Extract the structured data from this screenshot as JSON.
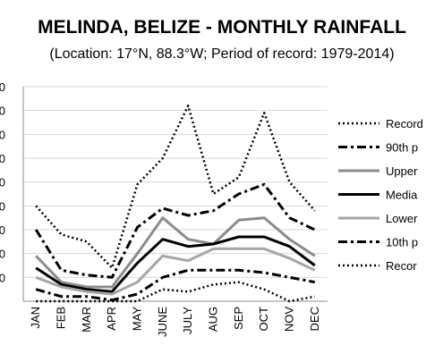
{
  "chart_data": {
    "type": "line",
    "title": "MELINDA, BELIZE - MONTHLY RAINFALL",
    "subtitle": "(Location: 17°N, 88.3°W; Period of record: 1979-2014)",
    "categories": [
      "JAN",
      "FEB",
      "MAR",
      "APR",
      "MAY",
      "JUNE",
      "JULY",
      "AUG",
      "SEP",
      "OCT",
      "NOV",
      "DEC"
    ],
    "y_tick_labels": [
      "",
      "0",
      "0",
      "0",
      "0",
      "0",
      "0",
      "0",
      "0",
      "0"
    ],
    "ylim": [
      0,
      9
    ],
    "grid": "horizontal",
    "legend_position": "right",
    "series": [
      {
        "name": "Record",
        "style": "dotted",
        "color": "#000000",
        "values": [
          4.0,
          2.8,
          2.5,
          1.4,
          4.9,
          6.0,
          8.2,
          4.5,
          5.2,
          7.9,
          5.0,
          3.8
        ]
      },
      {
        "name": "90th p",
        "style": "dashdot",
        "color": "#000000",
        "values": [
          3.0,
          1.3,
          1.1,
          1.0,
          3.1,
          3.9,
          3.6,
          3.8,
          4.5,
          4.9,
          3.5,
          3.0
        ]
      },
      {
        "name": "Upper",
        "style": "solid",
        "color": "#8c8c8c",
        "values": [
          1.9,
          0.8,
          0.6,
          0.6,
          2.0,
          3.5,
          2.6,
          2.4,
          3.4,
          3.5,
          2.6,
          1.9
        ]
      },
      {
        "name": "Media",
        "style": "solid",
        "color": "#000000",
        "values": [
          1.4,
          0.7,
          0.5,
          0.4,
          1.6,
          2.6,
          2.3,
          2.4,
          2.7,
          2.7,
          2.3,
          1.5
        ]
      },
      {
        "name": "Lower",
        "style": "solid",
        "color": "#a6a6a6",
        "values": [
          1.0,
          0.6,
          0.4,
          0.3,
          0.8,
          1.9,
          1.7,
          2.2,
          2.2,
          2.2,
          1.8,
          1.3
        ]
      },
      {
        "name": "10th p",
        "style": "dashdot",
        "color": "#000000",
        "values": [
          0.5,
          0.2,
          0.2,
          0.05,
          0.3,
          1.0,
          1.3,
          1.3,
          1.3,
          1.2,
          1.0,
          0.8
        ]
      },
      {
        "name": "Recor",
        "style": "dotted",
        "color": "#000000",
        "values": [
          0.0,
          0.0,
          0.0,
          0.0,
          0.0,
          0.5,
          0.4,
          0.7,
          0.8,
          0.5,
          0.0,
          0.2
        ]
      }
    ]
  }
}
